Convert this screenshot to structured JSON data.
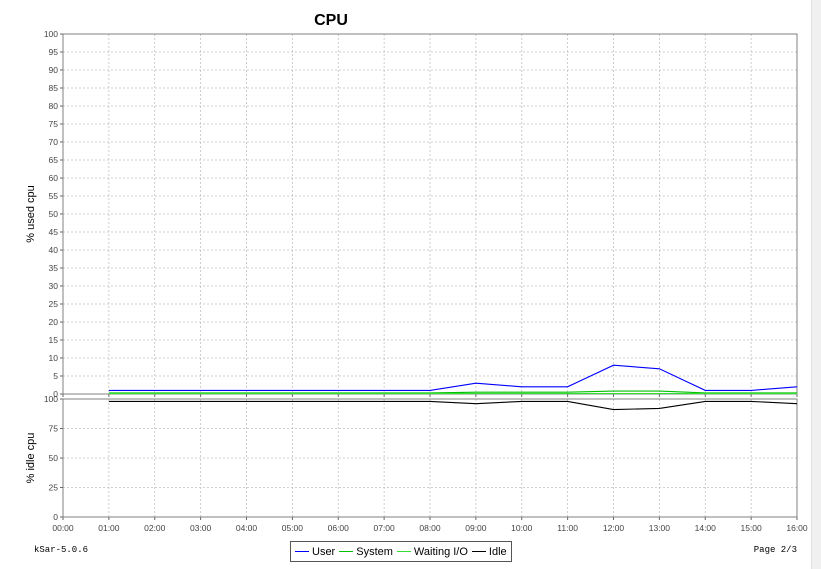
{
  "footer": {
    "left": "kSar-5.0.6",
    "right": "Page 2/3"
  },
  "chart_data": {
    "type": "line",
    "title": "CPU",
    "x": [
      "00:00",
      "01:00",
      "02:00",
      "03:00",
      "04:00",
      "05:00",
      "06:00",
      "07:00",
      "08:00",
      "09:00",
      "10:00",
      "11:00",
      "12:00",
      "13:00",
      "14:00",
      "15:00",
      "16:00"
    ],
    "xlim": [
      "00:00",
      "16:00"
    ],
    "grid": true,
    "legend_position": "bottom",
    "panels": [
      {
        "ylabel": "% used cpu",
        "ylim": [
          0,
          100
        ],
        "yticks": [
          0,
          5,
          10,
          15,
          20,
          25,
          30,
          35,
          40,
          45,
          50,
          55,
          60,
          65,
          70,
          75,
          80,
          85,
          90,
          95,
          100
        ],
        "series": [
          {
            "name": "User",
            "color": "#0000ff",
            "points": [
              [
                "01:00",
                1
              ],
              [
                "02:00",
                1
              ],
              [
                "03:00",
                1
              ],
              [
                "04:00",
                1
              ],
              [
                "05:00",
                1
              ],
              [
                "06:00",
                1
              ],
              [
                "07:00",
                1
              ],
              [
                "08:00",
                1
              ],
              [
                "09:00",
                3
              ],
              [
                "10:00",
                2
              ],
              [
                "11:00",
                2
              ],
              [
                "12:00",
                8
              ],
              [
                "13:00",
                7
              ],
              [
                "14:00",
                1
              ],
              [
                "15:00",
                1
              ],
              [
                "16:00",
                2
              ]
            ]
          },
          {
            "name": "System",
            "color": "#00c000",
            "points": [
              [
                "01:00",
                0.3
              ],
              [
                "02:00",
                0.3
              ],
              [
                "03:00",
                0.3
              ],
              [
                "04:00",
                0.3
              ],
              [
                "05:00",
                0.3
              ],
              [
                "06:00",
                0.3
              ],
              [
                "07:00",
                0.3
              ],
              [
                "08:00",
                0.3
              ],
              [
                "09:00",
                0.5
              ],
              [
                "10:00",
                0.5
              ],
              [
                "11:00",
                0.5
              ],
              [
                "12:00",
                0.8
              ],
              [
                "13:00",
                0.8
              ],
              [
                "14:00",
                0.3
              ],
              [
                "15:00",
                0.3
              ],
              [
                "16:00",
                0.3
              ]
            ]
          },
          {
            "name": "Waiting I/O",
            "color": "#33dd33",
            "points": [
              [
                "01:00",
                0.1
              ],
              [
                "02:00",
                0.1
              ],
              [
                "03:00",
                0.1
              ],
              [
                "04:00",
                0.1
              ],
              [
                "05:00",
                0.1
              ],
              [
                "06:00",
                0.1
              ],
              [
                "07:00",
                0.1
              ],
              [
                "08:00",
                0.1
              ],
              [
                "09:00",
                0.1
              ],
              [
                "10:00",
                0.1
              ],
              [
                "11:00",
                0.1
              ],
              [
                "12:00",
                0.1
              ],
              [
                "13:00",
                0.1
              ],
              [
                "14:00",
                0.1
              ],
              [
                "15:00",
                0.1
              ],
              [
                "16:00",
                0.1
              ]
            ]
          }
        ]
      },
      {
        "ylabel": "% idle cpu",
        "ylim": [
          0,
          100
        ],
        "yticks": [
          0,
          25,
          50,
          75,
          100
        ],
        "series": [
          {
            "name": "Idle",
            "color": "#000000",
            "points": [
              [
                "01:00",
                98
              ],
              [
                "02:00",
                98
              ],
              [
                "03:00",
                98
              ],
              [
                "04:00",
                98
              ],
              [
                "05:00",
                98
              ],
              [
                "06:00",
                98
              ],
              [
                "07:00",
                98
              ],
              [
                "08:00",
                98
              ],
              [
                "09:00",
                96
              ],
              [
                "10:00",
                98
              ],
              [
                "11:00",
                98
              ],
              [
                "12:00",
                91
              ],
              [
                "13:00",
                92
              ],
              [
                "14:00",
                98
              ],
              [
                "15:00",
                98
              ],
              [
                "16:00",
                96
              ]
            ]
          }
        ]
      }
    ],
    "legend": [
      {
        "name": "User",
        "color": "#0000ff"
      },
      {
        "name": "System",
        "color": "#00c000"
      },
      {
        "name": "Waiting I/O",
        "color": "#33dd33"
      },
      {
        "name": "Idle",
        "color": "#000000"
      }
    ]
  }
}
